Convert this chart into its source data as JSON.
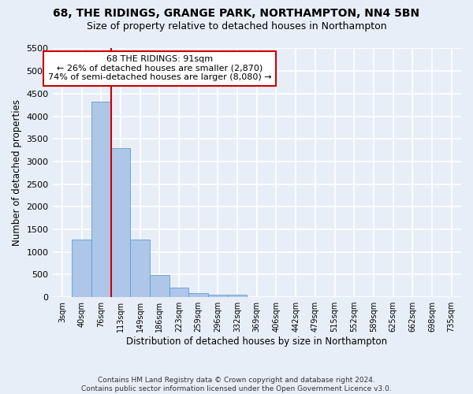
{
  "title1": "68, THE RIDINGS, GRANGE PARK, NORTHAMPTON, NN4 5BN",
  "title2": "Size of property relative to detached houses in Northampton",
  "xlabel": "Distribution of detached houses by size in Northampton",
  "ylabel": "Number of detached properties",
  "categories": [
    "3sqm",
    "40sqm",
    "76sqm",
    "113sqm",
    "149sqm",
    "186sqm",
    "223sqm",
    "259sqm",
    "296sqm",
    "332sqm",
    "369sqm",
    "406sqm",
    "442sqm",
    "479sqm",
    "515sqm",
    "552sqm",
    "589sqm",
    "625sqm",
    "662sqm",
    "698sqm",
    "735sqm"
  ],
  "bar_values": [
    0,
    1270,
    4330,
    3300,
    1280,
    490,
    215,
    85,
    55,
    50,
    0,
    0,
    0,
    0,
    0,
    0,
    0,
    0,
    0,
    0,
    0
  ],
  "bar_color": "#aec6e8",
  "bar_edge_color": "#5a9fd4",
  "background_color": "#e8eef8",
  "grid_color": "#ffffff",
  "vline_color": "#cc0000",
  "annotation_line1": "68 THE RIDINGS: 91sqm",
  "annotation_line2": "← 26% of detached houses are smaller (2,870)",
  "annotation_line3": "74% of semi-detached houses are larger (8,080) →",
  "annotation_box_color": "#ffffff",
  "annotation_box_edge_color": "#cc0000",
  "footer": "Contains HM Land Registry data © Crown copyright and database right 2024.\nContains public sector information licensed under the Open Government Licence v3.0.",
  "ylim_max": 5500,
  "yticks": [
    0,
    500,
    1000,
    1500,
    2000,
    2500,
    3000,
    3500,
    4000,
    4500,
    5000,
    5500
  ]
}
